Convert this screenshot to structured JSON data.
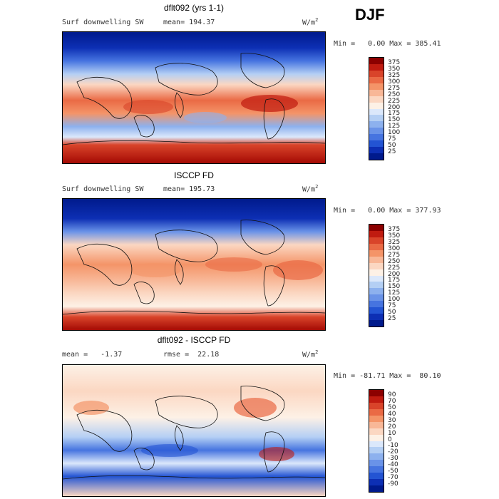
{
  "season": "DJF",
  "units_base": "W/m",
  "units_exp": "2",
  "panels": [
    {
      "title": "dflt092 (yrs 1-1)",
      "left_label": "Surf downwelling SW",
      "mid_label": "mean= 194.37",
      "minmax": "Min =   0.00 Max = 385.41",
      "ticks": [
        "375",
        "350",
        "325",
        "300",
        "275",
        "250",
        "225",
        "200",
        "175",
        "150",
        "125",
        "100",
        "75",
        "50",
        "25"
      ],
      "colors": [
        "#8c0000",
        "#c01b10",
        "#d9442a",
        "#ea6a45",
        "#f49468",
        "#f8b797",
        "#fbd7c2",
        "#fdf1e6",
        "#dbe8fb",
        "#b4cff4",
        "#8db1ee",
        "#6a93e8",
        "#4674e0",
        "#2354d3",
        "#0d2fb4",
        "#001a8c"
      ]
    },
    {
      "title": "ISCCP FD",
      "left_label": "Surf downwelling SW",
      "mid_label": "mean= 195.73",
      "minmax": "Min =   0.00 Max = 377.93",
      "ticks": [
        "375",
        "350",
        "325",
        "300",
        "275",
        "250",
        "225",
        "200",
        "175",
        "150",
        "125",
        "100",
        "75",
        "50",
        "25"
      ],
      "colors": [
        "#8c0000",
        "#c01b10",
        "#d9442a",
        "#ea6a45",
        "#f49468",
        "#f8b797",
        "#fbd7c2",
        "#fdf1e6",
        "#dbe8fb",
        "#b4cff4",
        "#8db1ee",
        "#6a93e8",
        "#4674e0",
        "#2354d3",
        "#0d2fb4",
        "#001a8c"
      ]
    },
    {
      "title": "dflt092 - ISCCP FD",
      "left_label": "mean =   -1.37",
      "mid_label": "rmse =  22.18",
      "minmax": "Min = -81.71 Max =  80.10",
      "ticks": [
        "90",
        "70",
        "50",
        "40",
        "30",
        "20",
        "10",
        "0",
        "-10",
        "-20",
        "-30",
        "-40",
        "-50",
        "-70",
        "-90"
      ],
      "colors": [
        "#8c0000",
        "#c01b10",
        "#d9442a",
        "#ea6a45",
        "#f49468",
        "#f8b797",
        "#fbd7c2",
        "#fdf1e6",
        "#dbe8fb",
        "#b4cff4",
        "#8db1ee",
        "#6a93e8",
        "#4674e0",
        "#2354d3",
        "#0d2fb4",
        "#001a8c"
      ]
    }
  ]
}
